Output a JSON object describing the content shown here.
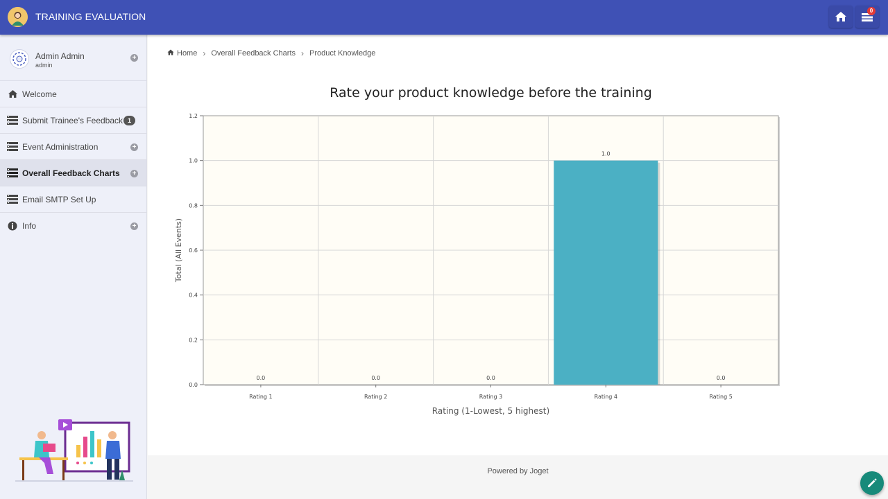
{
  "app": {
    "title": "TRAINING EVALUATION",
    "inbox_count": "0"
  },
  "user": {
    "name": "Admin Admin",
    "login": "admin"
  },
  "sidebar": {
    "items": [
      {
        "label": "Welcome",
        "icon": "home-icon"
      },
      {
        "label": "Submit Trainee's Feedback",
        "icon": "list-icon",
        "badge": "1"
      },
      {
        "label": "Event Administration",
        "icon": "list-icon"
      },
      {
        "label": "Overall Feedback Charts",
        "icon": "list-icon"
      },
      {
        "label": "Email SMTP Set Up",
        "icon": "list-icon"
      },
      {
        "label": "Info",
        "icon": "info-icon"
      }
    ]
  },
  "breadcrumb": {
    "home": "Home",
    "section": "Overall Feedback Charts",
    "current": "Product Knowledge"
  },
  "chart_data": {
    "type": "bar",
    "title": "Rate your product knowledge before the training",
    "xlabel": "Rating (1-Lowest, 5 highest)",
    "ylabel": "Total (All Events)",
    "categories": [
      "Rating 1",
      "Rating 2",
      "Rating 3",
      "Rating 4",
      "Rating 5"
    ],
    "values": [
      0.0,
      0.0,
      0.0,
      1.0,
      0.0
    ],
    "value_labels": [
      "0.0",
      "0.0",
      "0.0",
      "1.0",
      "0.0"
    ],
    "ylim": [
      0,
      1.2
    ],
    "yticks": [
      "0.0",
      "0.2",
      "0.4",
      "0.6",
      "0.8",
      "1.0",
      "1.2"
    ],
    "grid": true,
    "bar_color": "#4bb0c4",
    "plot_background": "#fffdf6"
  },
  "footer": {
    "text": "Powered by Joget"
  }
}
